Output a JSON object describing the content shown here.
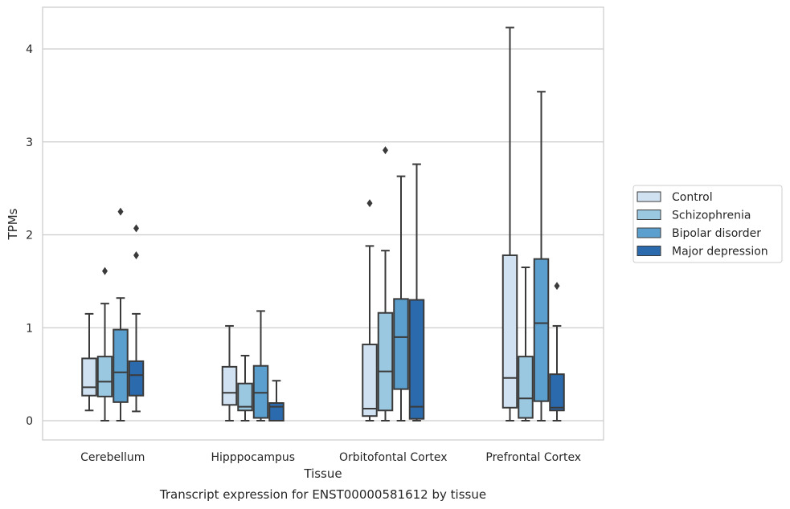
{
  "chart_data": {
    "type": "box",
    "title": "",
    "caption": "Transcript expression for ENST00000581612 by tissue",
    "xlabel": "Tissue",
    "ylabel": "TPMs",
    "ylim": [
      -0.2,
      4.35
    ],
    "yticks": [
      0,
      1,
      2,
      3,
      4
    ],
    "grid": "horizontal",
    "legend_position": "right",
    "categories": [
      "Cerebellum",
      "Hipppocampus",
      "Orbitofontal Cortex",
      "Prefrontal Cortex"
    ],
    "series": [
      {
        "name": "Control",
        "color": "#d0e1f2",
        "boxes": [
          {
            "whisker_low": 0.11,
            "q1": 0.27,
            "median": 0.36,
            "q3": 0.67,
            "whisker_high": 1.15,
            "outliers": []
          },
          {
            "whisker_low": 0.0,
            "q1": 0.17,
            "median": 0.3,
            "q3": 0.58,
            "whisker_high": 1.02,
            "outliers": []
          },
          {
            "whisker_low": 0.0,
            "q1": 0.05,
            "median": 0.13,
            "q3": 0.82,
            "whisker_high": 1.88,
            "outliers": [
              2.34
            ]
          },
          {
            "whisker_low": 0.0,
            "q1": 0.14,
            "median": 0.46,
            "q3": 1.78,
            "whisker_high": 4.23,
            "outliers": []
          }
        ]
      },
      {
        "name": "Schizophrenia",
        "color": "#9ac8e1",
        "boxes": [
          {
            "whisker_low": 0.0,
            "q1": 0.26,
            "median": 0.42,
            "q3": 0.69,
            "whisker_high": 1.26,
            "outliers": [
              1.61
            ]
          },
          {
            "whisker_low": 0.0,
            "q1": 0.11,
            "median": 0.15,
            "q3": 0.4,
            "whisker_high": 0.7,
            "outliers": []
          },
          {
            "whisker_low": 0.0,
            "q1": 0.11,
            "median": 0.53,
            "q3": 1.16,
            "whisker_high": 1.83,
            "outliers": [
              2.91
            ]
          },
          {
            "whisker_low": 0.0,
            "q1": 0.03,
            "median": 0.24,
            "q3": 0.69,
            "whisker_high": 1.65,
            "outliers": []
          }
        ]
      },
      {
        "name": "Bipolar disorder",
        "color": "#5a9fcd",
        "boxes": [
          {
            "whisker_low": 0.0,
            "q1": 0.2,
            "median": 0.52,
            "q3": 0.98,
            "whisker_high": 1.32,
            "outliers": [
              2.25
            ]
          },
          {
            "whisker_low": 0.0,
            "q1": 0.03,
            "median": 0.3,
            "q3": 0.59,
            "whisker_high": 1.18,
            "outliers": []
          },
          {
            "whisker_low": 0.0,
            "q1": 0.34,
            "median": 0.9,
            "q3": 1.31,
            "whisker_high": 2.63,
            "outliers": []
          },
          {
            "whisker_low": 0.0,
            "q1": 0.21,
            "median": 1.05,
            "q3": 1.74,
            "whisker_high": 3.54,
            "outliers": []
          }
        ]
      },
      {
        "name": "Major depression",
        "color": "#2a6aad",
        "boxes": [
          {
            "whisker_low": 0.1,
            "q1": 0.27,
            "median": 0.49,
            "q3": 0.64,
            "whisker_high": 1.15,
            "outliers": [
              1.78,
              2.07
            ]
          },
          {
            "whisker_low": 0.0,
            "q1": 0.0,
            "median": 0.15,
            "q3": 0.19,
            "whisker_high": 0.43,
            "outliers": []
          },
          {
            "whisker_low": 0.0,
            "q1": 0.02,
            "median": 0.15,
            "q3": 1.3,
            "whisker_high": 2.76,
            "outliers": []
          },
          {
            "whisker_low": 0.0,
            "q1": 0.11,
            "median": 0.14,
            "q3": 0.5,
            "whisker_high": 1.02,
            "outliers": [
              1.45
            ]
          }
        ]
      }
    ]
  }
}
